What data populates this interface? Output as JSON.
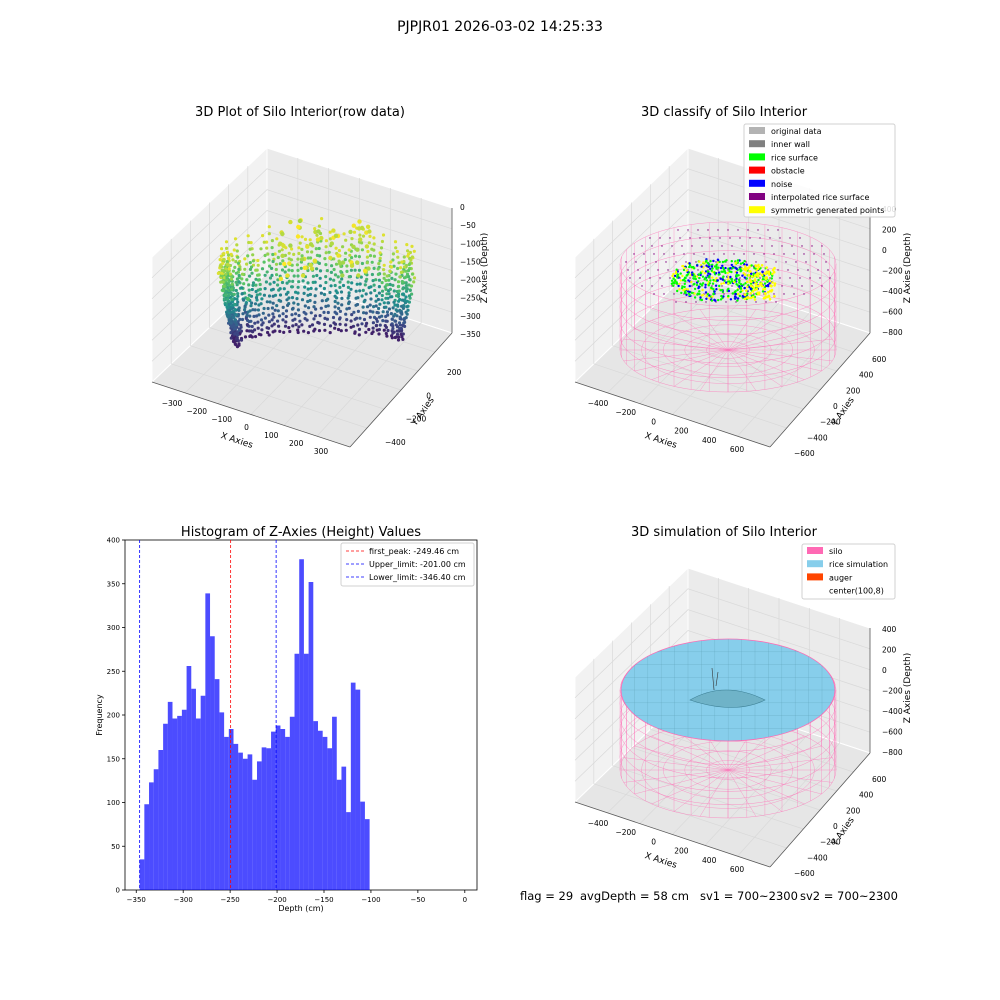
{
  "figure": {
    "title": "PJPJR01 2026-03-02 14:25:33",
    "footer": {
      "flag": "flag = 29",
      "avg_depth": "avgDepth = 58 cm",
      "sv1": "sv1 = 700~2300",
      "sv2": "sv2 = 700~2300"
    }
  },
  "chart_data": [
    {
      "type": "scatter",
      "projection": "3d",
      "title": "3D Plot of Silo Interior(row data)",
      "xlabel": "X Axies",
      "ylabel": "Y Axies",
      "zlabel": "Z Axies (Depth)",
      "x_ticks": [
        "−300",
        "−200",
        "−100",
        "0",
        "100",
        "200",
        "300"
      ],
      "y_ticks": [
        "−400",
        "−200",
        "0",
        "200"
      ],
      "z_ticks": [
        "0",
        "−50",
        "−100",
        "−150",
        "−200",
        "−250",
        "−300",
        "−350"
      ],
      "xlim": [
        -350,
        350
      ],
      "ylim": [
        -450,
        300
      ],
      "zlim": [
        -360,
        10
      ],
      "colormap": "viridis",
      "grid": true
    },
    {
      "type": "scatter",
      "projection": "3d",
      "title": "3D classify of Silo Interior",
      "xlabel": "X Axies",
      "ylabel": "Y Axies",
      "zlabel": "Z Axies (Depth)",
      "x_ticks": [
        "−400",
        "−200",
        "0",
        "200",
        "400",
        "600"
      ],
      "y_ticks": [
        "−600",
        "−400",
        "−200",
        "0",
        "200",
        "400",
        "600"
      ],
      "z_ticks": [
        "400",
        "200",
        "0",
        "−200",
        "−400",
        "−600",
        "−800"
      ],
      "xlim": [
        -550,
        750
      ],
      "ylim": [
        -650,
        650
      ],
      "zlim": [
        -900,
        450
      ],
      "legend_position": "top-right",
      "legend": [
        {
          "label": "original data",
          "color": "#b3b3b3"
        },
        {
          "label": "inner wall",
          "color": "#808080"
        },
        {
          "label": "rice surface",
          "color": "#00ff00"
        },
        {
          "label": "obstacle",
          "color": "#ff0000"
        },
        {
          "label": "noise",
          "color": "#0000ff"
        },
        {
          "label": "interpolated rice surface",
          "color": "#800080"
        },
        {
          "label": "symmetric generated points",
          "color": "#ffff00"
        }
      ],
      "grid": true
    },
    {
      "type": "bar",
      "title": "Histogram of Z-Axies (Height) Values",
      "xlabel": "Depth (cm)",
      "ylabel": "Frequency",
      "xlim": [
        -362,
        13
      ],
      "ylim": [
        0,
        400
      ],
      "x_ticks": [
        "−350",
        "−300",
        "−250",
        "−200",
        "−150",
        "−100",
        "−50",
        "0"
      ],
      "y_ticks": [
        "0",
        "50",
        "100",
        "150",
        "200",
        "250",
        "300",
        "350",
        "400"
      ],
      "bin_start": -346.4,
      "bin_width": 5.0,
      "values": [
        35,
        98,
        123,
        138,
        160,
        190,
        215,
        196,
        199,
        206,
        256,
        230,
        196,
        222,
        339,
        290,
        241,
        203,
        175,
        184,
        167,
        157,
        150,
        155,
        126,
        147,
        163,
        162,
        181,
        188,
        184,
        175,
        198,
        270,
        378,
        270,
        352,
        193,
        182,
        175,
        162,
        198,
        126,
        141,
        89,
        237,
        229,
        101,
        81
      ],
      "bar_color": "#0000ff",
      "vlines": [
        {
          "label": "first_peak: -249.46 cm",
          "x": -249.46,
          "color": "#ff0000"
        },
        {
          "label": "Upper_limit: -201.00 cm",
          "x": -201.0,
          "color": "#0000ff"
        },
        {
          "label": "Lower_limit: -346.40 cm",
          "x": -346.4,
          "color": "#0000ff"
        }
      ],
      "legend_position": "top-right"
    },
    {
      "type": "surface",
      "projection": "3d",
      "title": "3D simulation of Silo Interior",
      "xlabel": "X Axies",
      "ylabel": "Y Axies",
      "zlabel": "Z Axies (Depth)",
      "x_ticks": [
        "−400",
        "−200",
        "0",
        "200",
        "400",
        "600"
      ],
      "y_ticks": [
        "−600",
        "−400",
        "−200",
        "0",
        "200",
        "400",
        "600"
      ],
      "z_ticks": [
        "400",
        "200",
        "0",
        "−200",
        "−400",
        "−600",
        "−800"
      ],
      "xlim": [
        -550,
        750
      ],
      "ylim": [
        -650,
        650
      ],
      "zlim": [
        -900,
        450
      ],
      "legend_position": "top-right",
      "legend": [
        {
          "label": "silo",
          "color": "#ff69b4"
        },
        {
          "label": "rice simulation",
          "color": "#87ceeb"
        },
        {
          "label": "auger",
          "color": "#ff4500"
        },
        {
          "label": "center(100,8)",
          "color": "#ffffff"
        }
      ],
      "grid": true
    }
  ]
}
